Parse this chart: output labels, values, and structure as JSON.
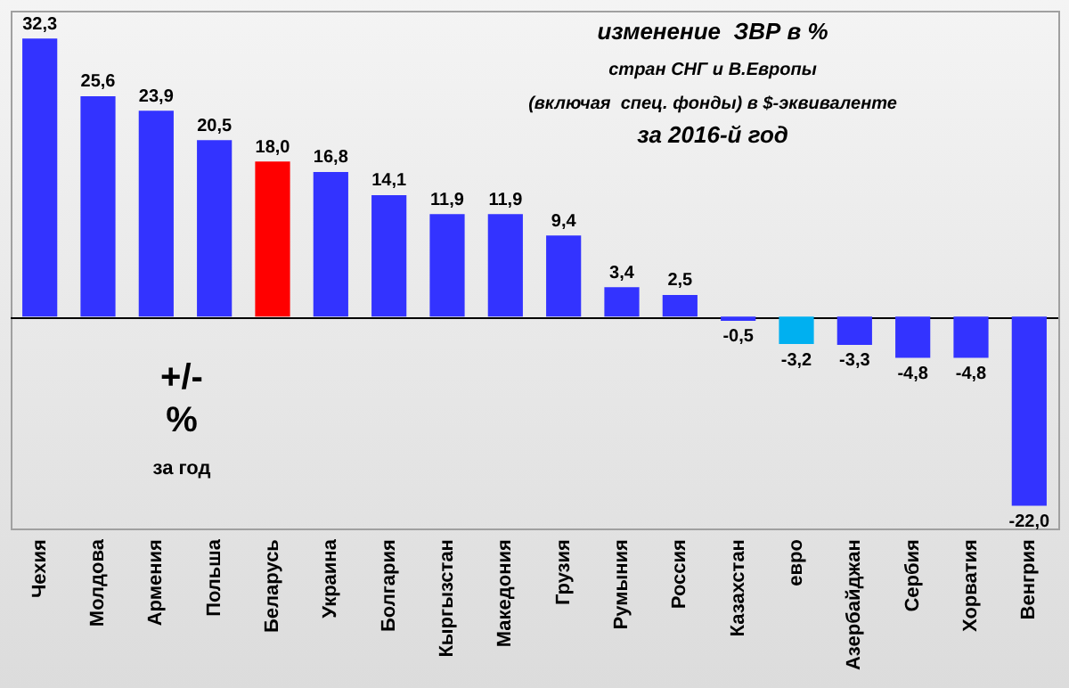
{
  "chart_data": {
    "type": "bar",
    "title": "изменение  ЗВР в %",
    "subtitle": "стран СНГ и В.Европы\n(включая  спец. фонды) в $-эквиваленте\nза 2016-й год",
    "categories": [
      "Чехия",
      "Молдова",
      "Армения",
      "Польша",
      "Беларусь",
      "Украина",
      "Болгария",
      "Кыргызстан",
      "Македония",
      "Грузия",
      "Румыния",
      "Россия",
      "Казахстан",
      "евро",
      "Азербайджан",
      "Сербия",
      "Хорватия",
      "Венгрия"
    ],
    "values": [
      32.3,
      25.6,
      23.9,
      20.5,
      18.0,
      16.8,
      14.1,
      11.9,
      11.9,
      9.4,
      3.4,
      2.5,
      -0.5,
      -3.2,
      -3.3,
      -4.8,
      -4.8,
      -22.0
    ],
    "colors": [
      "#3333ff",
      "#3333ff",
      "#3333ff",
      "#3333ff",
      "#ff0000",
      "#3333ff",
      "#3333ff",
      "#3333ff",
      "#3333ff",
      "#3333ff",
      "#3333ff",
      "#3333ff",
      "#3333ff",
      "#00b0f0",
      "#3333ff",
      "#3333ff",
      "#3333ff",
      "#3333ff"
    ],
    "value_labels": [
      "32,3",
      "25,6",
      "23,9",
      "20,5",
      "18,0",
      "16,8",
      "14,1",
      "11,9",
      "11,9",
      "9,4",
      "3,4",
      "2,5",
      "-0,5",
      "-3,2",
      "-3,3",
      "-4,8",
      "-4,8",
      "-22,0"
    ],
    "annotations": [
      "+/-",
      "%",
      "за год"
    ],
    "grid": false,
    "legend": false
  }
}
